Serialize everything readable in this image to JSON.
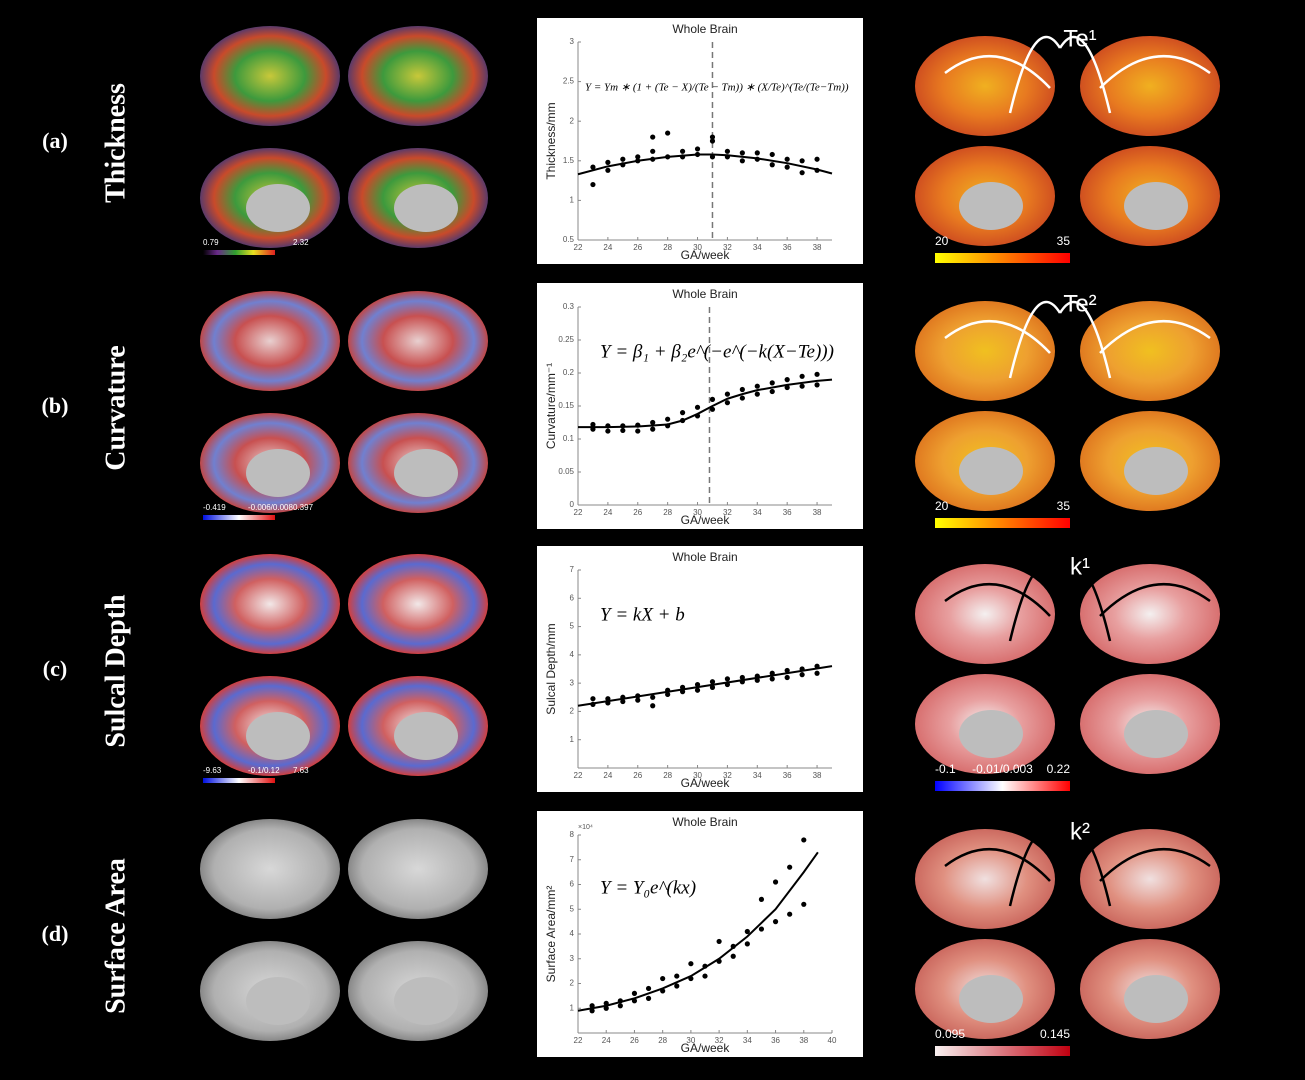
{
  "rows": [
    {
      "letter": "(a)",
      "measure": "Thickness",
      "raw_colorbar": [
        "0.79",
        "2.32"
      ],
      "map_colorbar": [
        "20",
        "35"
      ],
      "map_label": "Te¹"
    },
    {
      "letter": "(b)",
      "measure": "Curvature",
      "raw_colorbar": [
        "-0.419",
        "-0.006/0.008",
        "0.397"
      ],
      "map_colorbar": [
        "20",
        "35"
      ],
      "map_label": "Te²"
    },
    {
      "letter": "(c)",
      "measure": "Sulcal Depth",
      "raw_colorbar": [
        "-9.63",
        "-0.1/0.12",
        "7.63"
      ],
      "map_colorbar": [
        "-0.1",
        "-0.01/0.003",
        "0.22"
      ],
      "map_label": "k¹"
    },
    {
      "letter": "(d)",
      "measure": "Surface Area",
      "raw_colorbar": [],
      "map_colorbar": [
        "0.095",
        "0.145"
      ],
      "map_label": "k²"
    }
  ],
  "chart_data": [
    {
      "type": "scatter",
      "title": "Whole Brain",
      "xlabel": "GA/week",
      "ylabel": "Thickness/mm",
      "equation": "Y = Ym ∗ (1 + (Te − X)/(Te − Tm)) ∗ (X/Te)^(Te/(Te−Tm))",
      "xlim": [
        22,
        39
      ],
      "xticks": [
        22,
        24,
        26,
        28,
        30,
        32,
        34,
        36,
        38
      ],
      "ylim": [
        0.5,
        3
      ],
      "yticks": [
        0.5,
        1,
        1.5,
        2,
        2.5,
        3
      ],
      "vline": 31,
      "color": "#000000",
      "points": {
        "x": [
          23,
          23,
          24,
          24,
          25,
          25,
          26,
          26,
          27,
          27,
          27,
          28,
          28,
          29,
          29,
          30,
          30,
          31,
          31,
          31,
          32,
          32,
          33,
          33,
          34,
          34,
          35,
          35,
          36,
          36,
          37,
          37,
          38,
          38
        ],
        "y": [
          1.2,
          1.42,
          1.38,
          1.48,
          1.45,
          1.52,
          1.5,
          1.55,
          1.52,
          1.62,
          1.8,
          1.55,
          1.85,
          1.55,
          1.62,
          1.58,
          1.65,
          1.55,
          1.75,
          1.8,
          1.55,
          1.62,
          1.5,
          1.6,
          1.52,
          1.6,
          1.45,
          1.58,
          1.42,
          1.52,
          1.35,
          1.5,
          1.38,
          1.52
        ]
      },
      "fit": {
        "x": [
          22,
          24,
          26,
          28,
          30,
          31,
          32,
          34,
          36,
          38,
          39
        ],
        "y": [
          1.33,
          1.43,
          1.5,
          1.55,
          1.58,
          1.58,
          1.57,
          1.53,
          1.47,
          1.39,
          1.34
        ]
      }
    },
    {
      "type": "scatter",
      "title": "Whole Brain",
      "xlabel": "GA/week",
      "ylabel": "Curvature/mm⁻¹",
      "equation": "Y = β₁ + β₂e^(−e^(−k(X−Te)))",
      "xlim": [
        22,
        39
      ],
      "xticks": [
        22,
        24,
        26,
        28,
        30,
        32,
        34,
        36,
        38
      ],
      "ylim": [
        0,
        0.3
      ],
      "yticks": [
        0,
        0.05,
        0.1,
        0.15,
        0.2,
        0.25,
        0.3
      ],
      "vline": 30.8,
      "color": "#000000",
      "points": {
        "x": [
          23,
          23,
          24,
          24,
          25,
          25,
          26,
          26,
          27,
          27,
          28,
          28,
          29,
          29,
          30,
          30,
          31,
          31,
          32,
          32,
          33,
          33,
          34,
          34,
          35,
          35,
          36,
          36,
          37,
          37,
          38,
          38
        ],
        "y": [
          0.115,
          0.122,
          0.112,
          0.12,
          0.113,
          0.12,
          0.112,
          0.121,
          0.115,
          0.125,
          0.12,
          0.13,
          0.128,
          0.14,
          0.135,
          0.148,
          0.145,
          0.16,
          0.155,
          0.168,
          0.162,
          0.175,
          0.168,
          0.18,
          0.172,
          0.185,
          0.178,
          0.19,
          0.18,
          0.195,
          0.182,
          0.198
        ]
      },
      "fit": {
        "x": [
          22,
          24,
          26,
          28,
          29,
          30,
          31,
          32,
          33,
          34,
          36,
          38,
          39
        ],
        "y": [
          0.118,
          0.118,
          0.119,
          0.122,
          0.128,
          0.138,
          0.15,
          0.161,
          0.168,
          0.174,
          0.182,
          0.188,
          0.19
        ]
      }
    },
    {
      "type": "scatter",
      "title": "Whole Brain",
      "xlabel": "GA/week",
      "ylabel": "Sulcal Depth/mm",
      "equation": "Y = kX + b",
      "xlim": [
        22,
        39
      ],
      "xticks": [
        22,
        24,
        26,
        28,
        30,
        32,
        34,
        36,
        38
      ],
      "ylim": [
        0,
        7
      ],
      "yticks": [
        1,
        2,
        3,
        4,
        5,
        6,
        7
      ],
      "color": "#000000",
      "points": {
        "x": [
          23,
          23,
          24,
          24,
          25,
          25,
          26,
          26,
          27,
          27,
          28,
          28,
          29,
          29,
          30,
          30,
          31,
          31,
          32,
          32,
          33,
          33,
          34,
          34,
          35,
          35,
          36,
          36,
          37,
          37,
          38,
          38
        ],
        "y": [
          2.25,
          2.45,
          2.3,
          2.45,
          2.35,
          2.5,
          2.4,
          2.55,
          2.2,
          2.5,
          2.6,
          2.75,
          2.7,
          2.85,
          2.75,
          2.95,
          2.85,
          3.05,
          2.95,
          3.15,
          3.05,
          3.2,
          3.1,
          3.25,
          3.15,
          3.35,
          3.2,
          3.45,
          3.3,
          3.5,
          3.35,
          3.6
        ]
      },
      "fit": {
        "x": [
          22,
          39
        ],
        "y": [
          2.2,
          3.6
        ]
      }
    },
    {
      "type": "scatter",
      "title": "Whole Brain",
      "xlabel": "GA/week",
      "ylabel": "Surface Area/mm²",
      "equation": "Y = Y₀e^(kx)",
      "y_exponent_label": "×10⁴",
      "xlim": [
        22,
        40
      ],
      "xticks": [
        22,
        24,
        26,
        28,
        30,
        32,
        34,
        36,
        38,
        40
      ],
      "ylim": [
        0,
        8
      ],
      "yticks": [
        1,
        2,
        3,
        4,
        5,
        6,
        7,
        8
      ],
      "color": "#000000",
      "points": {
        "x": [
          23,
          23,
          24,
          24,
          25,
          25,
          26,
          26,
          27,
          27,
          28,
          28,
          29,
          29,
          30,
          30,
          31,
          31,
          32,
          32,
          33,
          33,
          34,
          34,
          35,
          35,
          36,
          36,
          37,
          37,
          38,
          38
        ],
        "y": [
          0.9,
          1.1,
          1.0,
          1.2,
          1.1,
          1.3,
          1.3,
          1.6,
          1.4,
          1.8,
          1.7,
          2.2,
          1.9,
          2.3,
          2.2,
          2.8,
          2.3,
          2.7,
          2.9,
          3.7,
          3.1,
          3.5,
          3.6,
          4.1,
          4.2,
          5.4,
          4.5,
          6.1,
          4.8,
          6.7,
          5.2,
          7.8
        ]
      },
      "fit": {
        "x": [
          22,
          24,
          26,
          28,
          30,
          32,
          34,
          36,
          38,
          39
        ],
        "y": [
          0.9,
          1.1,
          1.4,
          1.8,
          2.3,
          3.0,
          3.9,
          5.0,
          6.5,
          7.3
        ]
      }
    }
  ]
}
